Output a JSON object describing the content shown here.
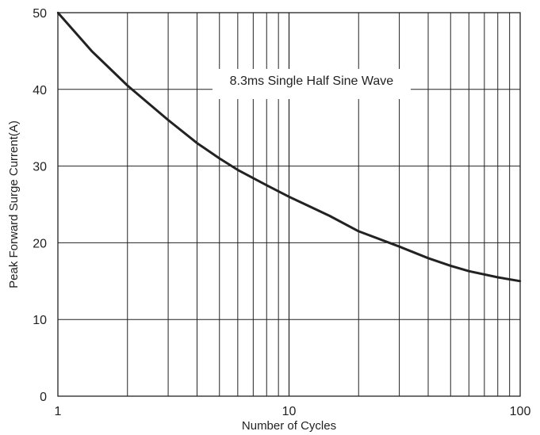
{
  "chart_data": {
    "type": "line",
    "title": "",
    "xlabel": "Number of Cycles",
    "ylabel": "Peak Forward Surge Current(A)",
    "x_scale": "log",
    "xlim": [
      1,
      100
    ],
    "ylim": [
      0,
      50
    ],
    "x_ticks": [
      1,
      10,
      100
    ],
    "y_ticks": [
      0,
      10,
      20,
      30,
      40,
      50
    ],
    "grid": true,
    "annotation": "8.3ms Single Half Sine Wave",
    "series": [
      {
        "x": [
          1,
          1.4,
          2,
          3,
          4,
          5,
          6,
          8,
          10,
          15,
          20,
          30,
          40,
          50,
          60,
          80,
          100
        ],
        "y": [
          50,
          45,
          40.5,
          36,
          33,
          31,
          29.5,
          27.5,
          26,
          23.5,
          21.5,
          19.5,
          18,
          17,
          16.3,
          15.5,
          15
        ]
      }
    ],
    "colors": {
      "line": "#222222",
      "grid": "#222222"
    }
  }
}
